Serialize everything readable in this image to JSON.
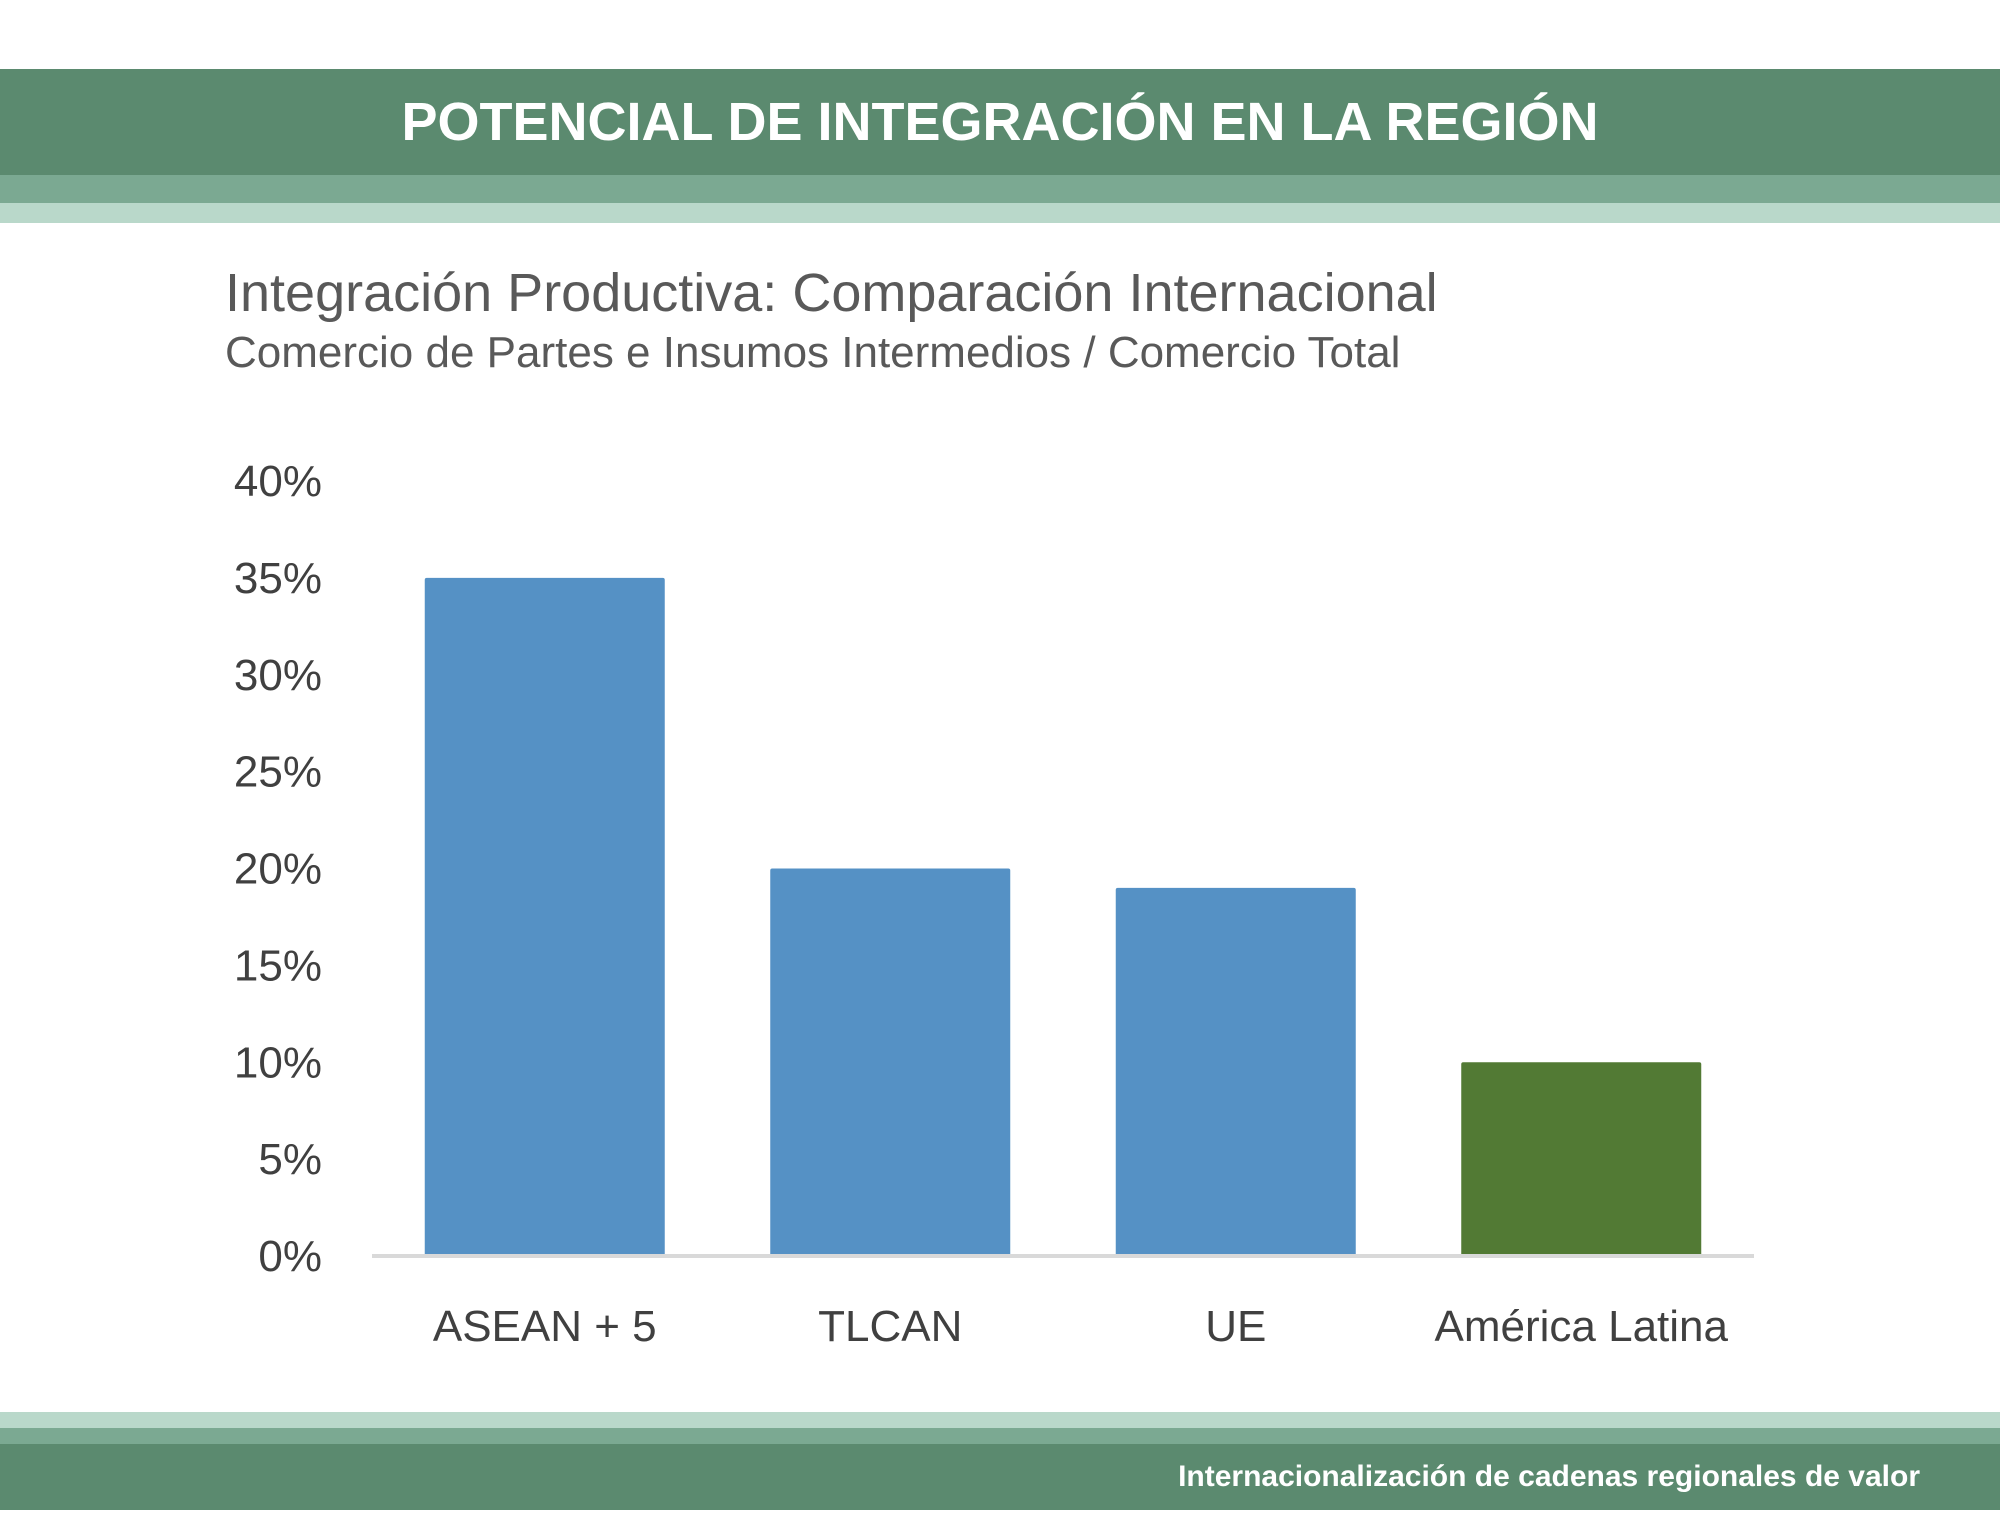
{
  "header": {
    "title": "POTENCIAL DE INTEGRACIÓN EN LA REGIÓN"
  },
  "footer": {
    "text": "Internacionalización de cadenas regionales de valor"
  },
  "colors": {
    "header_dark": "#5b8a6f",
    "header_mid": "#7ba992",
    "header_light": "#b9d8ca",
    "bar_blue": "#5591c5",
    "bar_green": "#527a34",
    "axis_text": "#404040"
  },
  "chart_data": {
    "type": "bar",
    "title": "Integración Productiva: Comparación Internacional",
    "subtitle": "Comercio de Partes e Insumos Intermedios / Comercio Total",
    "categories": [
      "ASEAN + 5",
      "TLCAN",
      "UE",
      "América Latina"
    ],
    "values": [
      35,
      20,
      19,
      10
    ],
    "bar_colors": [
      "#5591c5",
      "#5591c5",
      "#5591c5",
      "#527a34"
    ],
    "ylim": [
      0,
      40
    ],
    "yticks": [
      0,
      5,
      10,
      15,
      20,
      25,
      30,
      35,
      40
    ],
    "ytick_labels": [
      "0%",
      "5%",
      "10%",
      "15%",
      "20%",
      "25%",
      "30%",
      "35%",
      "40%"
    ],
    "grid": false,
    "legend": "none",
    "xlabel": "",
    "ylabel": ""
  }
}
